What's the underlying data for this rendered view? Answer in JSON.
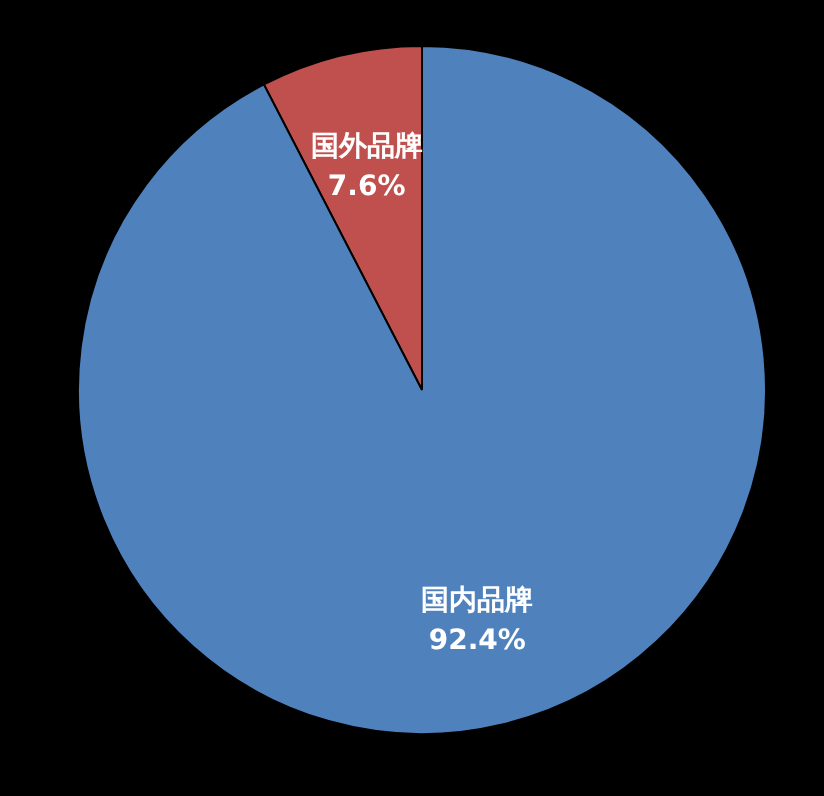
{
  "chart_data": {
    "type": "pie",
    "categories": [
      "国外品牌",
      "国内品牌"
    ],
    "values": [
      7.6,
      92.4
    ],
    "value_labels": [
      "7.6%",
      "92.4%"
    ],
    "colors": [
      "#c0504d",
      "#4f81bd"
    ]
  }
}
